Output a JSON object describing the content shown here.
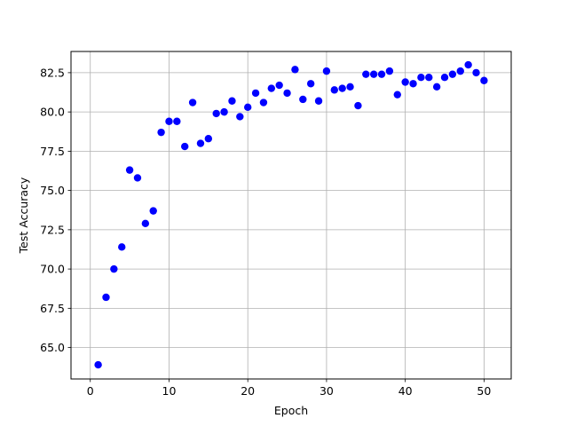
{
  "chart_data": {
    "type": "scatter",
    "title": "",
    "xlabel": "Epoch",
    "ylabel": "Test Accuracy",
    "xlim": [
      -2.45,
      53.45
    ],
    "ylim": [
      63.0,
      83.85
    ],
    "xticks": [
      0,
      10,
      20,
      30,
      40,
      50
    ],
    "yticks": [
      65.0,
      67.5,
      70.0,
      72.5,
      75.0,
      77.5,
      80.0,
      82.5
    ],
    "xtick_labels": [
      "0",
      "10",
      "20",
      "30",
      "40",
      "50"
    ],
    "ytick_labels": [
      "65.0",
      "67.5",
      "70.0",
      "72.5",
      "75.0",
      "77.5",
      "80.0",
      "82.5"
    ],
    "grid": true,
    "marker_color": "#0000ff",
    "series": [
      {
        "x": [
          1,
          2,
          3,
          4,
          5,
          6,
          7,
          8,
          9,
          10,
          11,
          12,
          13,
          14,
          15,
          16,
          17,
          18,
          19,
          20,
          21,
          22,
          23,
          24,
          25,
          26,
          27,
          28,
          29,
          30,
          31,
          32,
          33,
          34,
          35,
          36,
          37,
          38,
          39,
          40,
          41,
          42,
          43,
          44,
          45,
          46,
          47,
          48,
          49,
          50
        ],
        "y": [
          63.9,
          68.2,
          70.0,
          71.4,
          76.3,
          75.8,
          72.9,
          73.7,
          78.7,
          79.4,
          79.4,
          77.8,
          80.6,
          78.0,
          78.3,
          79.9,
          80.0,
          80.7,
          79.7,
          80.3,
          81.2,
          80.6,
          81.5,
          81.7,
          81.2,
          82.7,
          80.8,
          81.8,
          80.7,
          82.6,
          81.4,
          81.5,
          81.6,
          80.4,
          82.4,
          82.4,
          82.4,
          82.6,
          81.1,
          81.9,
          81.8,
          82.2,
          82.2,
          81.6,
          82.2,
          82.4,
          82.6,
          83.0,
          82.5,
          82.0
        ]
      }
    ]
  }
}
